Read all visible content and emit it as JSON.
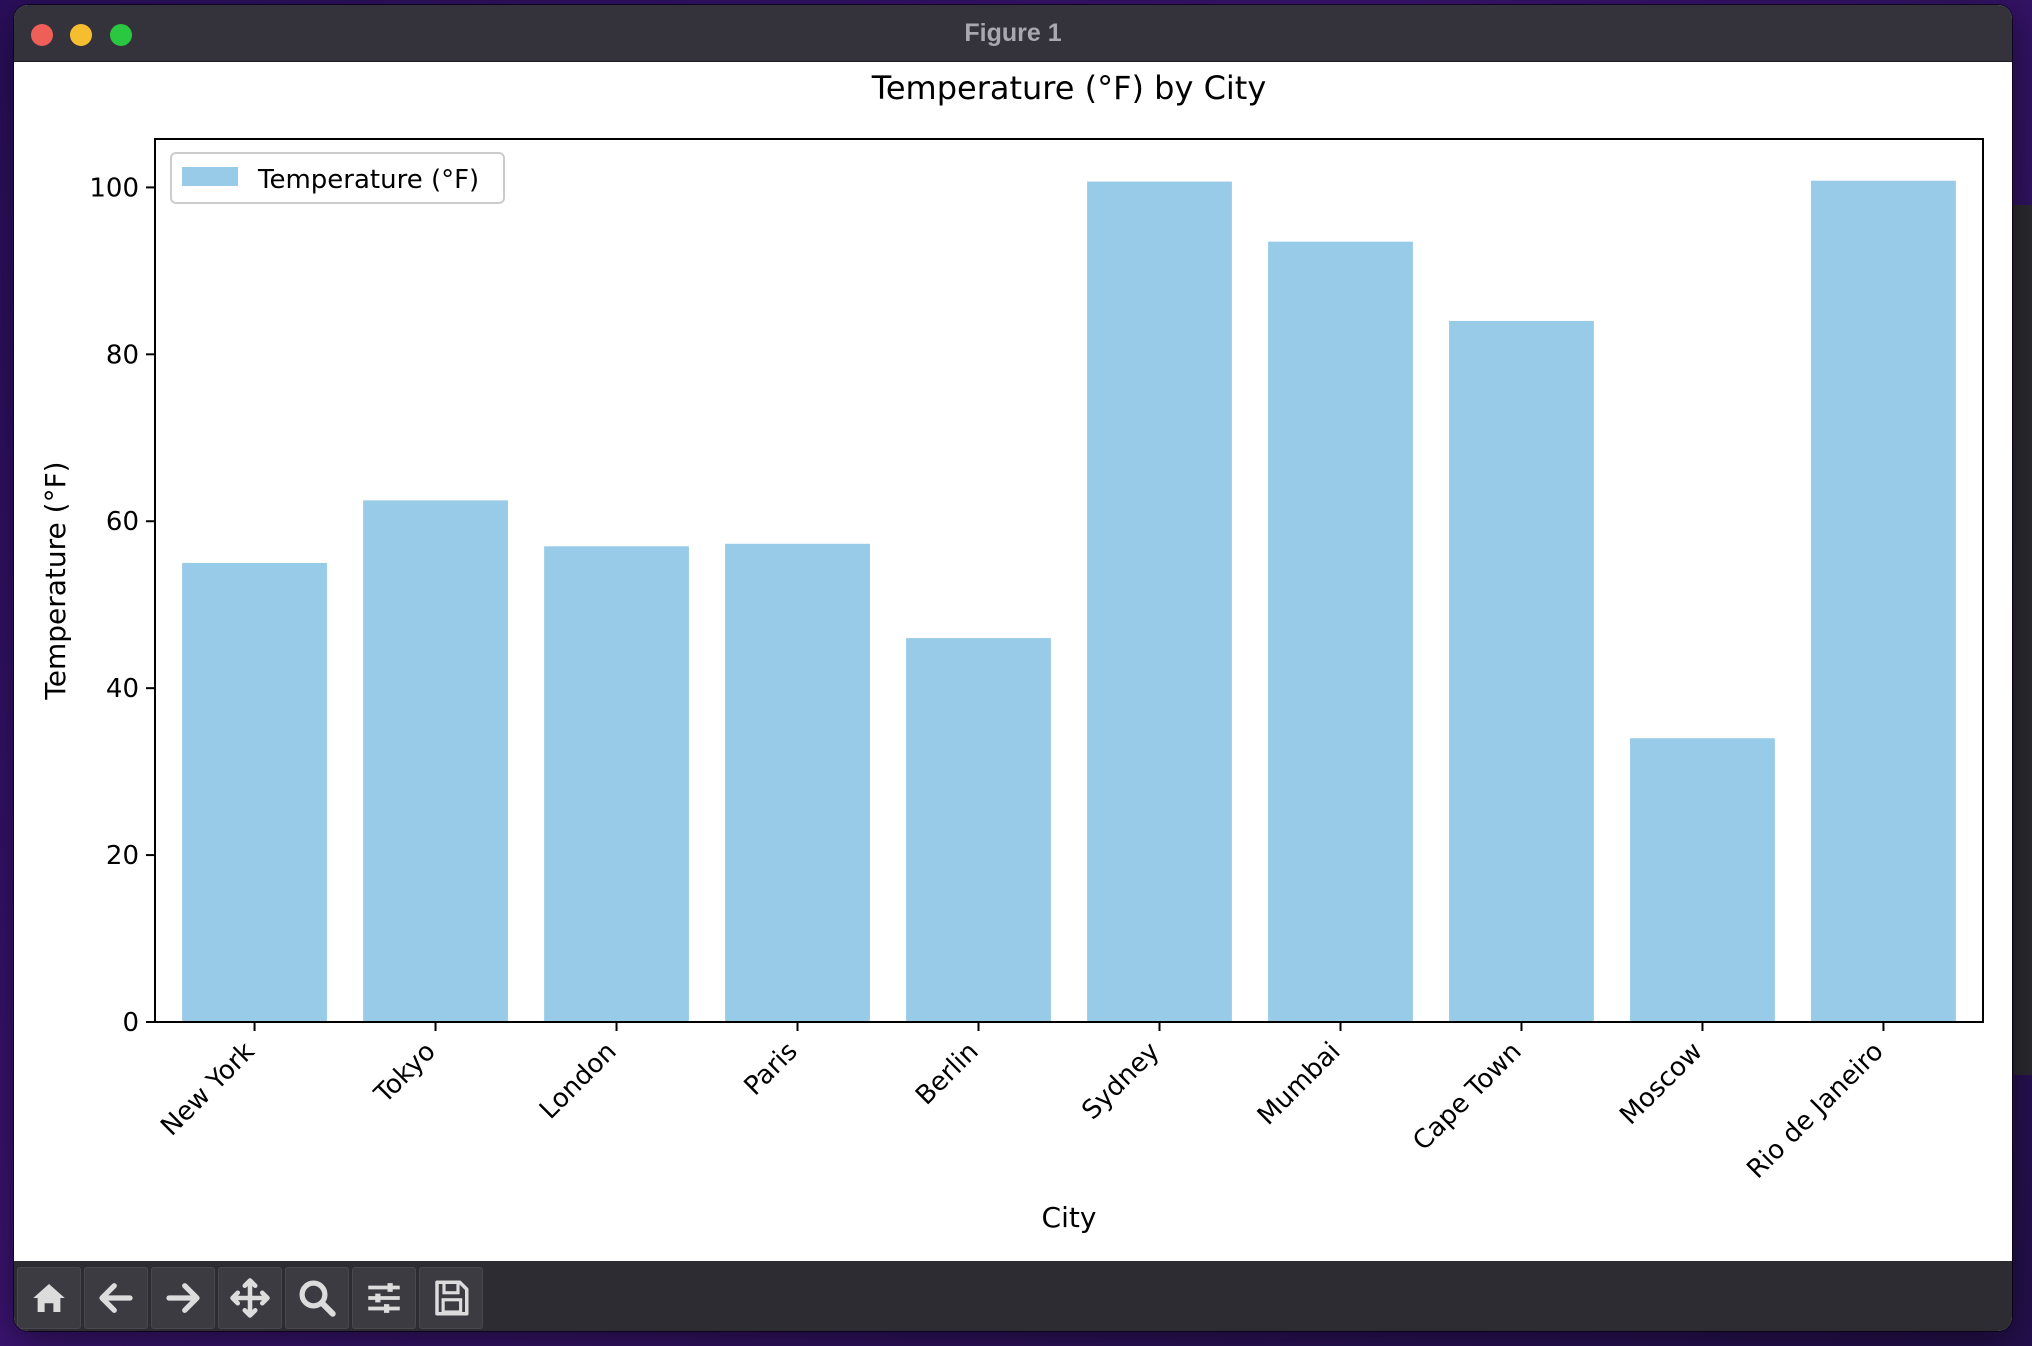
{
  "window": {
    "title": "Figure 1"
  },
  "chart_data": {
    "type": "bar",
    "title": "Temperature (°F) by City",
    "xlabel": "City",
    "ylabel": "Temperature (°F)",
    "categories": [
      "New York",
      "Tokyo",
      "London",
      "Paris",
      "Berlin",
      "Sydney",
      "Mumbai",
      "Cape Town",
      "Moscow",
      "Rio de Janeiro"
    ],
    "series": [
      {
        "name": "Temperature (°F)",
        "values": [
          55,
          62.5,
          57,
          57.3,
          46,
          100.7,
          93.5,
          84,
          34,
          100.8
        ]
      }
    ],
    "ylim": [
      0,
      105.8
    ],
    "yticks": [
      "0",
      "20",
      "40",
      "60",
      "80",
      "100"
    ],
    "bar_color": "#97cbe7",
    "legend_position": "top-left",
    "grid": false
  },
  "toolbar": {
    "tools": [
      {
        "name": "home-icon",
        "label": "Home"
      },
      {
        "name": "back-arrow-icon",
        "label": "Back"
      },
      {
        "name": "forward-arrow-icon",
        "label": "Forward"
      },
      {
        "name": "pan-icon",
        "label": "Pan"
      },
      {
        "name": "zoom-icon",
        "label": "Zoom"
      },
      {
        "name": "configure-subplots-icon",
        "label": "Configure subplots"
      },
      {
        "name": "save-icon",
        "label": "Save"
      }
    ]
  }
}
